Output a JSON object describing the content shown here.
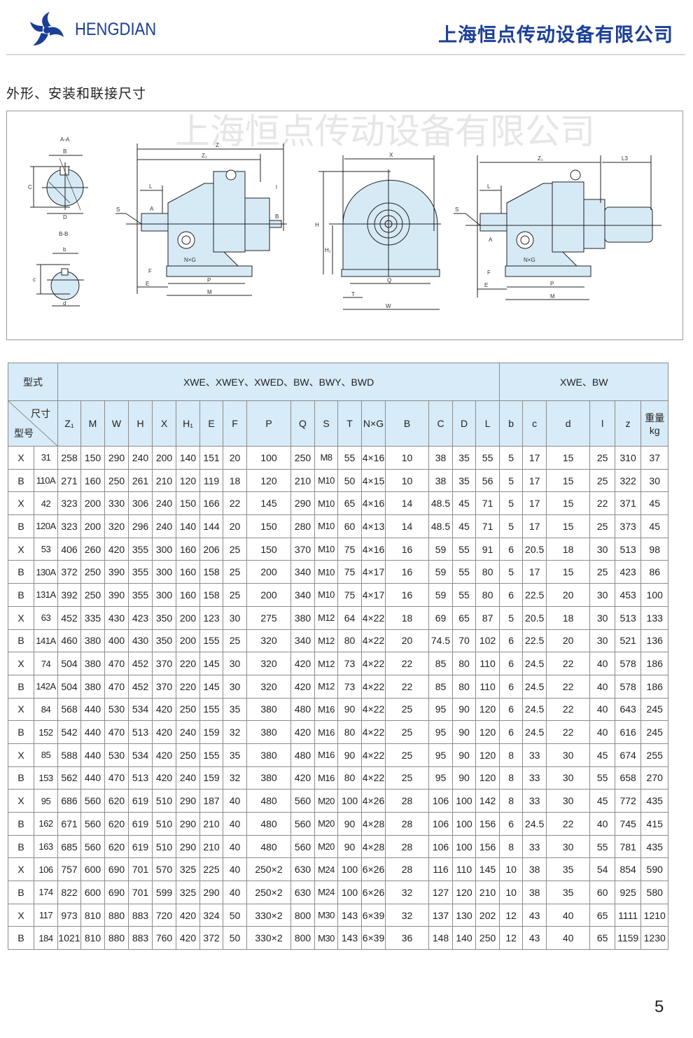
{
  "header": {
    "brand": "HENGDIAN",
    "company": "上海恒点传动设备有限公司",
    "brand_color": "#1b3f97"
  },
  "section_title": "外形、安装和联接尺寸",
  "drawing": {
    "watermark": "上海恒点传动设备有限公司",
    "fill_color": "#d6eaf6",
    "labels": [
      "A-A",
      "B",
      "C",
      "D",
      "B-B",
      "b",
      "c",
      "d",
      "Z",
      "Z₁",
      "L",
      "l",
      "S",
      "A",
      "B",
      "N×G",
      "F",
      "E",
      "P",
      "M",
      "X",
      "H",
      "H₁",
      "Q",
      "T",
      "W",
      "L3"
    ]
  },
  "table": {
    "header_bg": "#d7ebf8",
    "type_label": "型式",
    "size_label": "尺寸",
    "model_label": "型号",
    "group1": "XWE、XWEY、XWED、BW、BWY、BWD",
    "group2": "XWE、BW",
    "columns": [
      "Z₁",
      "M",
      "W",
      "H",
      "X",
      "H₁",
      "E",
      "F",
      "P",
      "Q",
      "S",
      "T",
      "N×G",
      "B",
      "C",
      "D",
      "L",
      "b",
      "c",
      "d",
      "l",
      "z"
    ],
    "weight_label": "重量",
    "weight_unit": "kg",
    "rows": [
      [
        "X",
        "31",
        "258",
        "150",
        "290",
        "240",
        "200",
        "140",
        "151",
        "20",
        "100",
        "250",
        "M8",
        "55",
        "4×16",
        "10",
        "38",
        "35",
        "55",
        "5",
        "17",
        "15",
        "25",
        "310",
        "37"
      ],
      [
        "B",
        "110A",
        "271",
        "160",
        "250",
        "261",
        "210",
        "120",
        "119",
        "18",
        "120",
        "210",
        "M10",
        "50",
        "4×15",
        "10",
        "38",
        "35",
        "56",
        "5",
        "17",
        "15",
        "25",
        "322",
        "30"
      ],
      [
        "X",
        "42",
        "323",
        "200",
        "330",
        "306",
        "240",
        "150",
        "166",
        "22",
        "145",
        "290",
        "M10",
        "65",
        "4×16",
        "14",
        "48.5",
        "45",
        "71",
        "5",
        "17",
        "15",
        "22",
        "371",
        "45"
      ],
      [
        "B",
        "120A",
        "323",
        "200",
        "320",
        "296",
        "240",
        "140",
        "144",
        "20",
        "150",
        "280",
        "M10",
        "60",
        "4×13",
        "14",
        "48.5",
        "45",
        "71",
        "5",
        "17",
        "15",
        "25",
        "373",
        "45"
      ],
      [
        "X",
        "53",
        "406",
        "260",
        "420",
        "355",
        "300",
        "160",
        "206",
        "25",
        "150",
        "370",
        "M10",
        "75",
        "4×16",
        "16",
        "59",
        "55",
        "91",
        "6",
        "20.5",
        "18",
        "30",
        "513",
        "98"
      ],
      [
        "B",
        "130A",
        "372",
        "250",
        "390",
        "355",
        "300",
        "160",
        "158",
        "25",
        "200",
        "340",
        "M10",
        "75",
        "4×17",
        "16",
        "59",
        "55",
        "80",
        "5",
        "17",
        "15",
        "25",
        "423",
        "86"
      ],
      [
        "B",
        "131A",
        "392",
        "250",
        "390",
        "355",
        "300",
        "160",
        "158",
        "25",
        "200",
        "340",
        "M10",
        "75",
        "4×17",
        "16",
        "59",
        "55",
        "80",
        "6",
        "22.5",
        "20",
        "30",
        "453",
        "100"
      ],
      [
        "X",
        "63",
        "452",
        "335",
        "430",
        "423",
        "350",
        "200",
        "123",
        "30",
        "275",
        "380",
        "M12",
        "64",
        "4×22",
        "18",
        "69",
        "65",
        "87",
        "5",
        "20.5",
        "18",
        "30",
        "513",
        "133"
      ],
      [
        "B",
        "141A",
        "460",
        "380",
        "400",
        "430",
        "350",
        "200",
        "155",
        "25",
        "320",
        "340",
        "M12",
        "80",
        "4×22",
        "20",
        "74.5",
        "70",
        "102",
        "6",
        "22.5",
        "20",
        "30",
        "521",
        "136"
      ],
      [
        "X",
        "74",
        "504",
        "380",
        "470",
        "452",
        "370",
        "220",
        "145",
        "30",
        "320",
        "420",
        "M12",
        "73",
        "4×22",
        "22",
        "85",
        "80",
        "110",
        "6",
        "24.5",
        "22",
        "40",
        "578",
        "186"
      ],
      [
        "B",
        "142A",
        "504",
        "380",
        "470",
        "452",
        "370",
        "220",
        "145",
        "30",
        "320",
        "420",
        "M12",
        "73",
        "4×22",
        "22",
        "85",
        "80",
        "110",
        "6",
        "24.5",
        "22",
        "40",
        "578",
        "186"
      ],
      [
        "X",
        "84",
        "568",
        "440",
        "530",
        "534",
        "420",
        "250",
        "155",
        "35",
        "380",
        "480",
        "M16",
        "90",
        "4×22",
        "25",
        "95",
        "90",
        "120",
        "6",
        "24.5",
        "22",
        "40",
        "643",
        "245"
      ],
      [
        "B",
        "152",
        "542",
        "440",
        "470",
        "513",
        "420",
        "240",
        "159",
        "32",
        "380",
        "420",
        "M16",
        "80",
        "4×22",
        "25",
        "95",
        "90",
        "120",
        "6",
        "24.5",
        "22",
        "40",
        "616",
        "245"
      ],
      [
        "X",
        "85",
        "588",
        "440",
        "530",
        "534",
        "420",
        "250",
        "155",
        "35",
        "380",
        "480",
        "M16",
        "90",
        "4×22",
        "25",
        "95",
        "90",
        "120",
        "8",
        "33",
        "30",
        "45",
        "674",
        "255"
      ],
      [
        "B",
        "153",
        "562",
        "440",
        "470",
        "513",
        "420",
        "240",
        "159",
        "32",
        "380",
        "420",
        "M16",
        "80",
        "4×22",
        "25",
        "95",
        "90",
        "120",
        "8",
        "33",
        "30",
        "55",
        "658",
        "270"
      ],
      [
        "X",
        "95",
        "686",
        "560",
        "620",
        "619",
        "510",
        "290",
        "187",
        "40",
        "480",
        "560",
        "M20",
        "100",
        "4×26",
        "28",
        "106",
        "100",
        "142",
        "8",
        "33",
        "30",
        "45",
        "772",
        "435"
      ],
      [
        "B",
        "162",
        "671",
        "560",
        "620",
        "619",
        "510",
        "290",
        "210",
        "40",
        "480",
        "560",
        "M20",
        "90",
        "4×28",
        "28",
        "106",
        "100",
        "156",
        "6",
        "24.5",
        "22",
        "40",
        "745",
        "415"
      ],
      [
        "B",
        "163",
        "685",
        "560",
        "620",
        "619",
        "510",
        "290",
        "210",
        "40",
        "480",
        "560",
        "M20",
        "90",
        "4×28",
        "28",
        "106",
        "100",
        "156",
        "8",
        "33",
        "30",
        "55",
        "781",
        "435"
      ],
      [
        "X",
        "106",
        "757",
        "600",
        "690",
        "701",
        "570",
        "325",
        "225",
        "40",
        "250×2",
        "630",
        "M24",
        "100",
        "6×26",
        "28",
        "116",
        "110",
        "145",
        "10",
        "38",
        "35",
        "54",
        "854",
        "590"
      ],
      [
        "B",
        "174",
        "822",
        "600",
        "690",
        "701",
        "599",
        "325",
        "290",
        "40",
        "250×2",
        "630",
        "M24",
        "100",
        "6×26",
        "32",
        "127",
        "120",
        "210",
        "10",
        "38",
        "35",
        "60",
        "925",
        "580"
      ],
      [
        "X",
        "117",
        "973",
        "810",
        "880",
        "883",
        "720",
        "420",
        "324",
        "50",
        "330×2",
        "800",
        "M30",
        "143",
        "6×39",
        "32",
        "137",
        "130",
        "202",
        "12",
        "43",
        "40",
        "65",
        "1111",
        "1210"
      ],
      [
        "B",
        "184",
        "1021",
        "810",
        "880",
        "883",
        "760",
        "420",
        "372",
        "50",
        "330×2",
        "800",
        "M30",
        "143",
        "6×39",
        "36",
        "148",
        "140",
        "250",
        "12",
        "43",
        "40",
        "65",
        "1159",
        "1230"
      ]
    ]
  },
  "page_number": "5"
}
